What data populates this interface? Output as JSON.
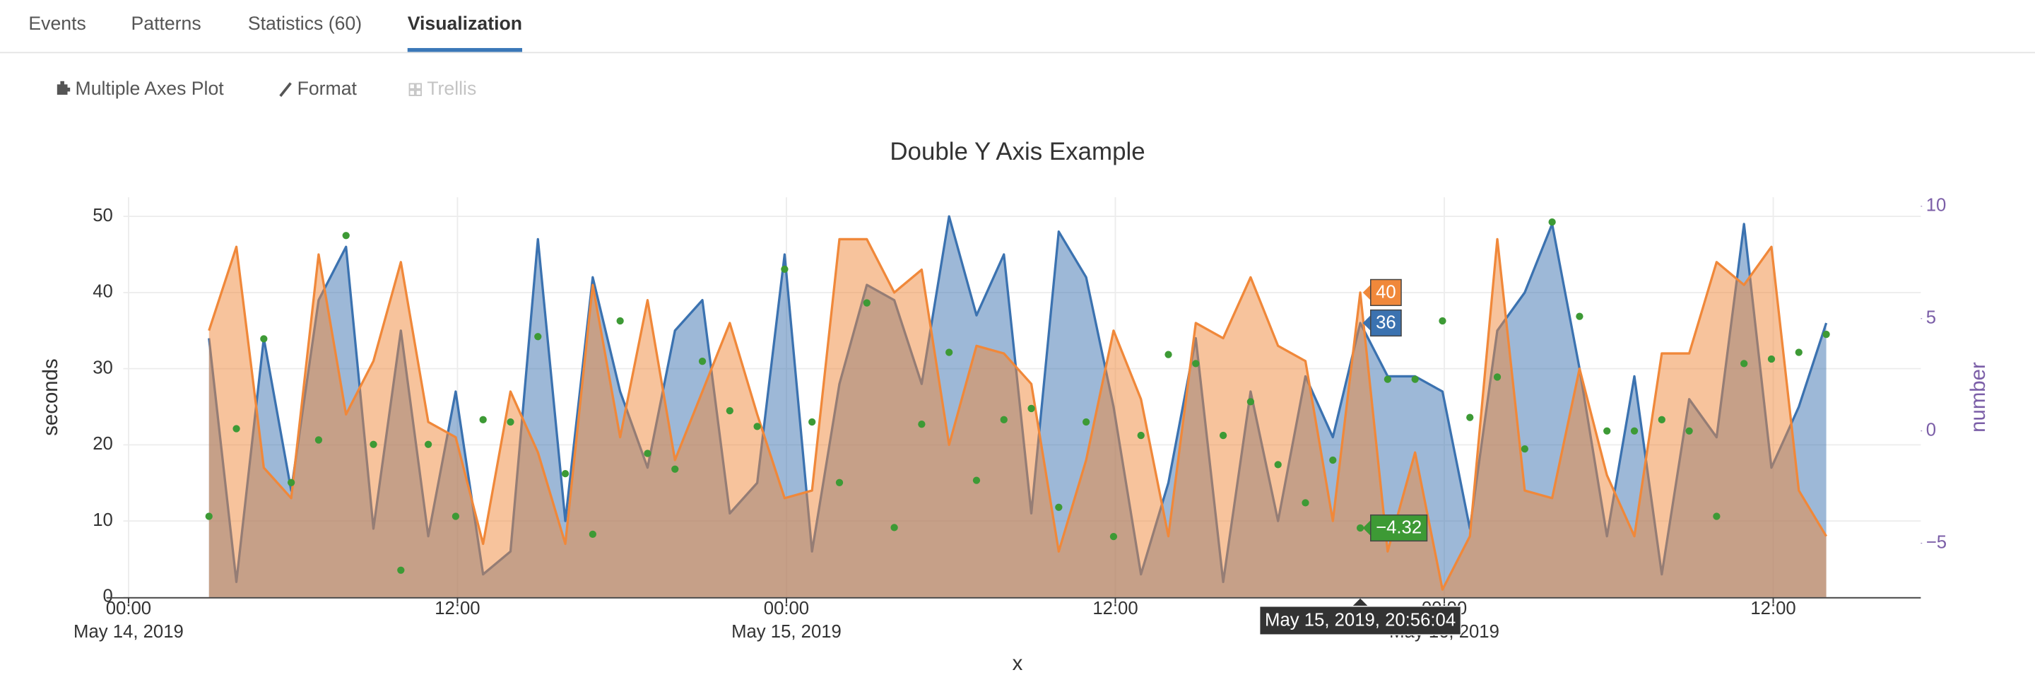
{
  "tabs": [
    {
      "label": "Events"
    },
    {
      "label": "Patterns"
    },
    {
      "label": "Statistics (60)"
    },
    {
      "label": "Visualization",
      "active": true
    }
  ],
  "toolbar": [
    {
      "label": "Multiple Axes Plot"
    },
    {
      "label": "Format"
    },
    {
      "label": "Trellis",
      "disabled": true
    }
  ],
  "chart_data": {
    "type": "area",
    "title": "Double Y Axis Example",
    "x_label": "x",
    "y_label": "seconds",
    "y2_label": "number",
    "tooltip_x": "May 15, 2019, 20:56:04",
    "grid": true,
    "x": [
      "2019-05-14T02:56:04",
      "2019-05-14T03:56:04",
      "2019-05-14T04:56:04",
      "2019-05-14T05:56:04",
      "2019-05-14T06:56:04",
      "2019-05-14T07:56:04",
      "2019-05-14T08:56:04",
      "2019-05-14T09:56:04",
      "2019-05-14T10:56:04",
      "2019-05-14T11:56:04",
      "2019-05-14T12:56:04",
      "2019-05-14T13:56:04",
      "2019-05-14T14:56:04",
      "2019-05-14T15:56:04",
      "2019-05-14T16:56:04",
      "2019-05-14T17:56:04",
      "2019-05-14T18:56:04",
      "2019-05-14T19:56:04",
      "2019-05-14T20:56:04",
      "2019-05-14T21:56:04",
      "2019-05-14T22:56:04",
      "2019-05-14T23:56:04",
      "2019-05-15T00:56:04",
      "2019-05-15T01:56:04",
      "2019-05-15T02:56:04",
      "2019-05-15T03:56:04",
      "2019-05-15T04:56:04",
      "2019-05-15T05:56:04",
      "2019-05-15T06:56:04",
      "2019-05-15T07:56:04",
      "2019-05-15T08:56:04",
      "2019-05-15T09:56:04",
      "2019-05-15T10:56:04",
      "2019-05-15T11:56:04",
      "2019-05-15T12:56:04",
      "2019-05-15T13:56:04",
      "2019-05-15T14:56:04",
      "2019-05-15T15:56:04",
      "2019-05-15T16:56:04",
      "2019-05-15T17:56:04",
      "2019-05-15T18:56:04",
      "2019-05-15T19:56:04",
      "2019-05-15T20:56:04",
      "2019-05-15T21:56:04",
      "2019-05-15T22:56:04",
      "2019-05-15T23:56:04",
      "2019-05-16T00:56:04",
      "2019-05-16T01:56:04",
      "2019-05-16T02:56:04",
      "2019-05-16T03:56:04",
      "2019-05-16T04:56:04",
      "2019-05-16T05:56:04",
      "2019-05-16T06:56:04",
      "2019-05-16T07:56:04",
      "2019-05-16T08:56:04",
      "2019-05-16T09:56:04",
      "2019-05-16T10:56:04",
      "2019-05-16T11:56:04",
      "2019-05-16T12:56:04",
      "2019-05-16T13:56:04"
    ],
    "xlim": [
      "2019-05-13T23:40:00",
      "2019-05-16T17:23:00"
    ],
    "xticks": [
      {
        "value": "2019-05-14T00:00:00",
        "label": "00:00",
        "date": "May 14, 2019"
      },
      {
        "value": "2019-05-14T12:00:00",
        "label": "12:00"
      },
      {
        "value": "2019-05-15T00:00:00",
        "label": "00:00",
        "date": "May 15, 2019"
      },
      {
        "value": "2019-05-15T12:00:00",
        "label": "12:00"
      },
      {
        "value": "2019-05-16T00:00:00",
        "label": "00:00",
        "date": "May 16, 2019"
      },
      {
        "value": "2019-05-16T12:00:00",
        "label": "12:00"
      }
    ],
    "ylim": [
      0,
      52.5
    ],
    "yticks": [
      0,
      10,
      20,
      30,
      40,
      50
    ],
    "y2lim": [
      -7.4,
      10.4
    ],
    "y2ticks": [
      {
        "value": -5,
        "label": "−5"
      },
      0,
      5,
      10
    ],
    "series": [
      {
        "type": "area",
        "color": "#3b72b0",
        "values": [
          34,
          2,
          34,
          14,
          39,
          46,
          9,
          35,
          8,
          27,
          3,
          6,
          47,
          10,
          42,
          27,
          17,
          35,
          39,
          11,
          15,
          45,
          6,
          28,
          41,
          39,
          28,
          50,
          37,
          45,
          11,
          48,
          42,
          25,
          3,
          15,
          34,
          2,
          27,
          10,
          29,
          21,
          36,
          29,
          29,
          27,
          9,
          35,
          40,
          49,
          30,
          8,
          29,
          3,
          26,
          21,
          49,
          17,
          25,
          36
        ],
        "value_labels": [
          null,
          null,
          null,
          null,
          null,
          null,
          null,
          null,
          null,
          null,
          null,
          null,
          null,
          null,
          null,
          null,
          null,
          null,
          null,
          null,
          null,
          null,
          null,
          null,
          null,
          null,
          null,
          null,
          null,
          null,
          null,
          null,
          null,
          null,
          null,
          null,
          null,
          null,
          null,
          null,
          null,
          null,
          "36",
          null,
          null,
          null,
          null,
          null,
          null,
          null,
          null,
          null,
          null,
          null,
          null,
          null,
          null,
          null,
          null,
          null
        ]
      },
      {
        "type": "area",
        "color": "#f0883a",
        "values": [
          35,
          46,
          17,
          13,
          45,
          24,
          31,
          44,
          23,
          21,
          7,
          27,
          19,
          7,
          41,
          21,
          39,
          18,
          27,
          36,
          24,
          13,
          14,
          47,
          47,
          40,
          43,
          20,
          33,
          32,
          28,
          6,
          18,
          35,
          26,
          8,
          36,
          34,
          42,
          33,
          31,
          10,
          40,
          6,
          19,
          1,
          8,
          47,
          14,
          13,
          30,
          16,
          8,
          32,
          32,
          44,
          41,
          46,
          14,
          8
        ],
        "value_labels": [
          null,
          null,
          null,
          null,
          null,
          null,
          null,
          null,
          null,
          null,
          null,
          null,
          null,
          null,
          null,
          null,
          null,
          null,
          null,
          null,
          null,
          null,
          null,
          null,
          null,
          null,
          null,
          null,
          null,
          null,
          null,
          null,
          null,
          null,
          null,
          null,
          null,
          null,
          null,
          null,
          null,
          null,
          "40",
          null,
          null,
          null,
          null,
          null,
          null,
          null,
          null,
          null,
          null,
          null,
          null,
          null,
          null,
          null,
          null,
          null
        ]
      },
      {
        "type": "scatter",
        "color": "#3d9a35",
        "axis": "y2",
        "values": [
          -3.8,
          0.1,
          4.1,
          -2.3,
          -0.4,
          8.7,
          -0.6,
          -6.2,
          -0.6,
          -3.8,
          0.5,
          0.4,
          4.2,
          -1.9,
          -4.6,
          4.9,
          -1.0,
          -1.7,
          3.1,
          0.9,
          0.2,
          7.2,
          0.4,
          -2.3,
          5.7,
          -4.3,
          0.3,
          3.5,
          -2.2,
          0.5,
          1.0,
          -3.4,
          0.4,
          -4.7,
          -0.2,
          3.4,
          3.0,
          -0.2,
          1.3,
          -1.5,
          -3.2,
          -1.3,
          -4.32,
          2.3,
          2.3,
          4.9,
          0.6,
          2.4,
          -0.8,
          9.3,
          5.1,
          0.0,
          0.0,
          0.5,
          0.0,
          -3.8,
          3.0,
          3.2,
          3.5,
          4.3
        ],
        "value_labels": [
          null,
          null,
          null,
          null,
          null,
          null,
          null,
          null,
          null,
          null,
          null,
          null,
          null,
          null,
          null,
          null,
          null,
          null,
          null,
          null,
          null,
          null,
          null,
          null,
          null,
          null,
          null,
          null,
          null,
          null,
          null,
          null,
          null,
          null,
          null,
          null,
          null,
          null,
          null,
          null,
          null,
          null,
          "−4.32",
          null,
          null,
          null,
          null,
          null,
          null,
          null,
          null,
          null,
          null,
          null,
          null,
          null,
          null,
          null,
          null,
          null
        ]
      }
    ]
  }
}
